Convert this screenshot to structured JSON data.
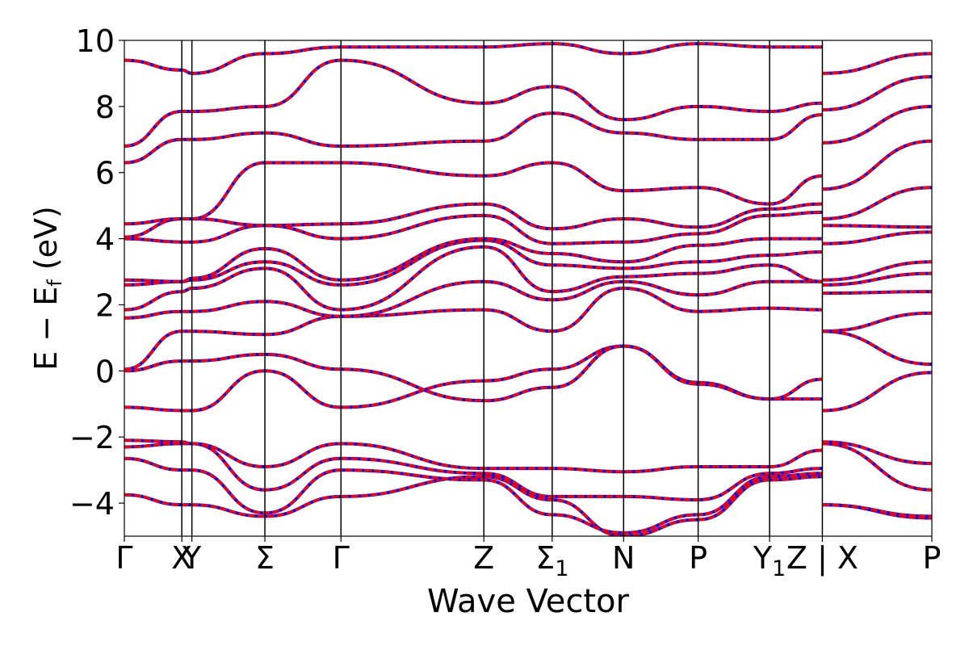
{
  "chart_data": {
    "type": "line",
    "title": "",
    "xlabel": "Wave Vector",
    "ylabel": "E − E",
    "ylabel_sub": "f",
    "ylabel_unit": " (eV)",
    "ylim": [
      -5,
      10
    ],
    "yticks": [
      -4,
      -2,
      0,
      2,
      4,
      6,
      8,
      10
    ],
    "ytick_labels": [
      "−4",
      "−2",
      "0",
      "2",
      "4",
      "6",
      "8",
      "10"
    ],
    "xlim": [
      0,
      10.4
    ],
    "kpoints": [
      {
        "label": "Γ",
        "sub": "",
        "x": 0.0
      },
      {
        "label": "X",
        "sub": "",
        "x": 0.74
      },
      {
        "label": "Y",
        "sub": "",
        "x": 0.87
      },
      {
        "label": "Σ",
        "sub": "",
        "x": 1.81
      },
      {
        "label": "Γ",
        "sub": "",
        "x": 2.79
      },
      {
        "label": "Z",
        "sub": "",
        "x": 4.63
      },
      {
        "label": "Σ",
        "sub": "1",
        "x": 5.51
      },
      {
        "label": "N",
        "sub": "",
        "x": 6.43
      },
      {
        "label": "P",
        "sub": "",
        "x": 7.39
      },
      {
        "label": "Y",
        "sub": "1",
        "x": 8.31
      },
      {
        "label": "Z | X",
        "sub": "",
        "x": 8.99
      },
      {
        "label": "P",
        "sub": "",
        "x": 10.4
      }
    ],
    "series_style": [
      {
        "color": "#0000ff",
        "style": "solid"
      },
      {
        "color": "#ff0000",
        "style": "dashed"
      }
    ],
    "bands": [
      [
        -3.75,
        -4.05,
        -4.05,
        -4.4,
        -3.8,
        -3.2,
        -3.9,
        -5.0,
        -4.5,
        -3.3,
        -3.2,
        -4.05,
        -4.45
      ],
      [
        -2.65,
        -3.0,
        -3.0,
        -4.3,
        -3.0,
        -3.3,
        -4.35,
        -4.9,
        -4.35,
        -3.2,
        -3.1,
        -4.05,
        -4.4
      ],
      [
        -2.3,
        -2.2,
        -2.2,
        -3.6,
        -2.65,
        -3.1,
        -3.8,
        -3.8,
        -3.9,
        -3.1,
        -2.95,
        -2.2,
        -3.6
      ],
      [
        -2.1,
        -2.15,
        -2.2,
        -2.9,
        -2.2,
        -2.95,
        -2.95,
        -3.05,
        -2.9,
        -2.9,
        -2.4,
        -2.15,
        -2.8
      ],
      [
        -1.1,
        -1.2,
        -1.2,
        0.0,
        -1.1,
        -0.3,
        0.05,
        0.75,
        -0.35,
        -0.85,
        -0.85,
        -1.2,
        -0.05
      ],
      [
        0.0,
        0.3,
        0.3,
        0.5,
        0.05,
        -0.9,
        -0.5,
        0.75,
        -0.4,
        -0.85,
        -0.25,
        1.2,
        0.2
      ],
      [
        0.05,
        1.2,
        1.2,
        1.1,
        1.65,
        1.85,
        1.2,
        2.5,
        1.8,
        1.9,
        1.85,
        1.2,
        1.75
      ],
      [
        1.6,
        1.8,
        1.8,
        2.1,
        1.65,
        2.7,
        2.15,
        2.7,
        2.3,
        2.7,
        2.7,
        2.35,
        2.4
      ],
      [
        1.85,
        2.4,
        2.5,
        3.1,
        1.85,
        3.75,
        2.4,
        2.85,
        2.95,
        3.2,
        2.7,
        2.6,
        2.95
      ],
      [
        2.6,
        2.7,
        2.75,
        3.3,
        2.6,
        3.95,
        3.2,
        3.1,
        3.3,
        3.5,
        3.6,
        2.75,
        3.3
      ],
      [
        2.75,
        2.7,
        2.8,
        3.7,
        2.75,
        4.0,
        3.55,
        3.3,
        3.8,
        4.0,
        4.0,
        3.85,
        4.2
      ],
      [
        4.0,
        3.9,
        3.9,
        4.4,
        4.0,
        4.7,
        3.85,
        3.9,
        4.15,
        4.7,
        4.8,
        4.4,
        4.35
      ],
      [
        4.05,
        4.6,
        4.6,
        4.4,
        4.45,
        5.05,
        4.3,
        4.6,
        4.35,
        4.9,
        5.05,
        4.6,
        5.55
      ],
      [
        4.45,
        4.6,
        4.6,
        6.3,
        6.3,
        5.9,
        6.3,
        5.45,
        5.55,
        5.05,
        5.9,
        5.5,
        6.95
      ],
      [
        6.3,
        7.0,
        7.0,
        7.2,
        6.8,
        6.95,
        7.8,
        7.2,
        7.0,
        7.0,
        7.75,
        6.9,
        8.0
      ],
      [
        6.8,
        7.85,
        7.85,
        8.0,
        9.4,
        8.1,
        8.6,
        7.6,
        8.0,
        7.85,
        8.1,
        7.9,
        8.9
      ],
      [
        9.4,
        9.1,
        9.0,
        9.6,
        9.8,
        9.8,
        9.9,
        9.6,
        9.9,
        9.8,
        9.8,
        9.0,
        9.6
      ]
    ]
  }
}
